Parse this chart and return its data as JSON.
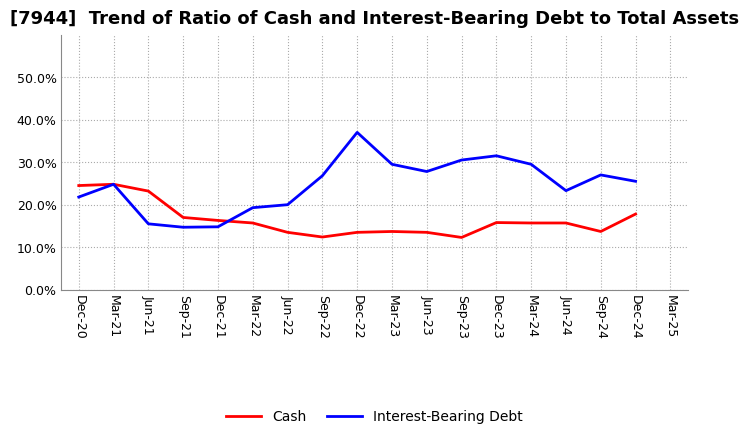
{
  "title": "[7944]  Trend of Ratio of Cash and Interest-Bearing Debt to Total Assets",
  "x_labels": [
    "Dec-20",
    "Mar-21",
    "Jun-21",
    "Sep-21",
    "Dec-21",
    "Mar-22",
    "Jun-22",
    "Sep-22",
    "Dec-22",
    "Mar-23",
    "Jun-23",
    "Sep-23",
    "Dec-23",
    "Mar-24",
    "Jun-24",
    "Sep-24",
    "Dec-24",
    "Mar-25"
  ],
  "cash": [
    0.245,
    0.248,
    0.232,
    0.17,
    0.163,
    0.157,
    0.135,
    0.124,
    0.135,
    0.137,
    0.135,
    0.123,
    0.158,
    0.157,
    0.157,
    0.137,
    0.178,
    null
  ],
  "interest_bearing_debt": [
    0.218,
    0.248,
    0.155,
    0.147,
    0.148,
    0.193,
    0.2,
    0.268,
    0.37,
    0.295,
    0.278,
    0.305,
    0.315,
    0.295,
    0.233,
    0.27,
    0.255,
    null
  ],
  "ylim": [
    0.0,
    0.6
  ],
  "yticks": [
    0.0,
    0.1,
    0.2,
    0.3,
    0.4,
    0.5
  ],
  "cash_color": "#FF0000",
  "debt_color": "#0000FF",
  "line_width": 2.0,
  "background_color": "#FFFFFF",
  "plot_bg_color": "#FFFFFF",
  "grid_color": "#AAAAAA",
  "legend_cash": "Cash",
  "legend_debt": "Interest-Bearing Debt",
  "title_fontsize": 13,
  "tick_fontsize": 9,
  "legend_fontsize": 10
}
